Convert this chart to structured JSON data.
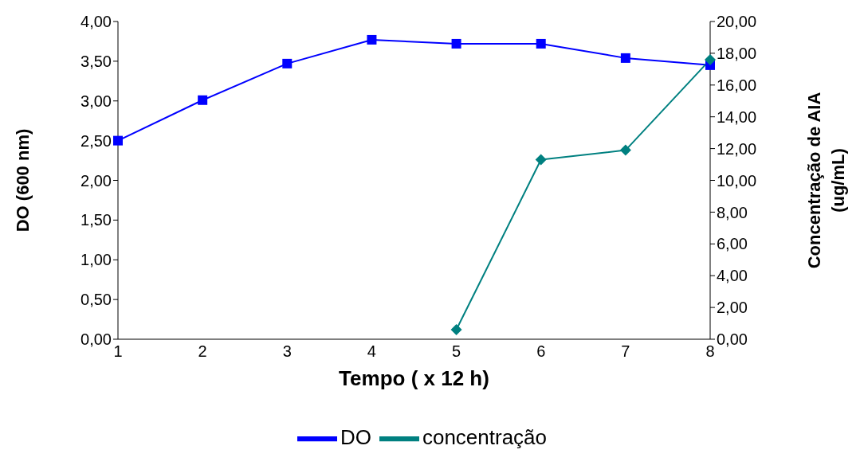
{
  "chart_data": {
    "type": "line",
    "xlabel": "Tempo ( x 12 h)",
    "ylabel": "DO (600 nm)",
    "y2label": "Concentração de AIA (ug/mL)",
    "categories": [
      "1",
      "2",
      "3",
      "4",
      "5",
      "6",
      "7",
      "8"
    ],
    "series": [
      {
        "name": "DO",
        "color": "#0000ff",
        "marker": "square",
        "values": [
          2.5,
          3.01,
          3.47,
          3.77,
          3.72,
          3.72,
          3.54,
          3.45
        ]
      },
      {
        "name": "concentração",
        "color": "#008080",
        "marker": "diamond",
        "axis": "y2",
        "values": [
          null,
          null,
          null,
          null,
          0.6,
          11.3,
          11.9,
          17.6
        ]
      }
    ],
    "ylim": [
      0,
      4
    ],
    "yticks": [
      {
        "value": 0,
        "label": "0,00"
      },
      {
        "value": 0.5,
        "label": "0,50"
      },
      {
        "value": 1,
        "label": "1,00"
      },
      {
        "value": 1.5,
        "label": "1,50"
      },
      {
        "value": 2,
        "label": "2,00"
      },
      {
        "value": 2.5,
        "label": "2,50"
      },
      {
        "value": 3,
        "label": "3,00"
      },
      {
        "value": 3.5,
        "label": "3,50"
      },
      {
        "value": 4,
        "label": "4,00"
      }
    ],
    "y2lim": [
      0,
      20
    ],
    "y2ticks": [
      {
        "value": 0,
        "label": "0,00"
      },
      {
        "value": 2,
        "label": "2,00"
      },
      {
        "value": 4,
        "label": "4,00"
      },
      {
        "value": 6,
        "label": "6,00"
      },
      {
        "value": 8,
        "label": "8,00"
      },
      {
        "value": 10,
        "label": "10,00"
      },
      {
        "value": 12,
        "label": "12,00"
      },
      {
        "value": 14,
        "label": "14,00"
      },
      {
        "value": 16,
        "label": "16,00"
      },
      {
        "value": 18,
        "label": "18,00"
      },
      {
        "value": 20,
        "label": "20,00"
      }
    ],
    "grid": false,
    "legend": "bottom",
    "line_style": "solid"
  }
}
